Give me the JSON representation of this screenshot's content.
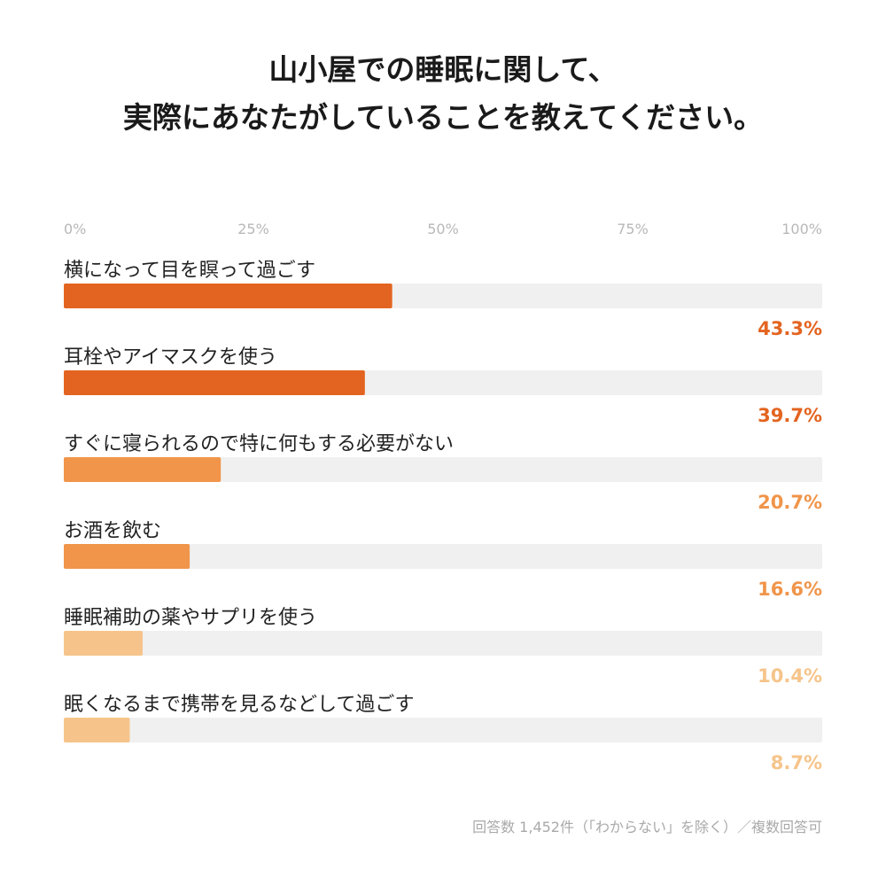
{
  "title_lines": [
    "山小屋での睡眠に関して、",
    "実際にあなたがしていることを教えてください。"
  ],
  "footnote": "回答数 1,452件（「わからない」を除く）／複数回答可",
  "colors": {
    "track": "#f0f0f0",
    "tick": "#b8b8b8",
    "label": "#222222",
    "high": "#e36420",
    "mid": "#f0954a",
    "low": "#f6c48a"
  },
  "chart_data": {
    "type": "bar",
    "orientation": "horizontal",
    "xlim": [
      0,
      100
    ],
    "ticks": [
      "0%",
      "25%",
      "50%",
      "75%",
      "100%"
    ],
    "grid": false,
    "categories": [
      "横になって目を瞑って過ごす",
      "耳栓やアイマスクを使う",
      "すぐに寝られるので特に何もする必要がない",
      "お酒を飲む",
      "睡眠補助の薬やサプリを使う",
      "眠くなるまで携帯を見るなどして過ごす"
    ],
    "values": [
      43.3,
      39.7,
      20.7,
      16.6,
      10.4,
      8.7
    ],
    "value_labels": [
      "43.3%",
      "39.7%",
      "20.7%",
      "16.6%",
      "10.4%",
      "8.7%"
    ],
    "bar_colors": [
      "#e36420",
      "#e36420",
      "#f0954a",
      "#f0954a",
      "#f6c48a",
      "#f6c48a"
    ]
  }
}
